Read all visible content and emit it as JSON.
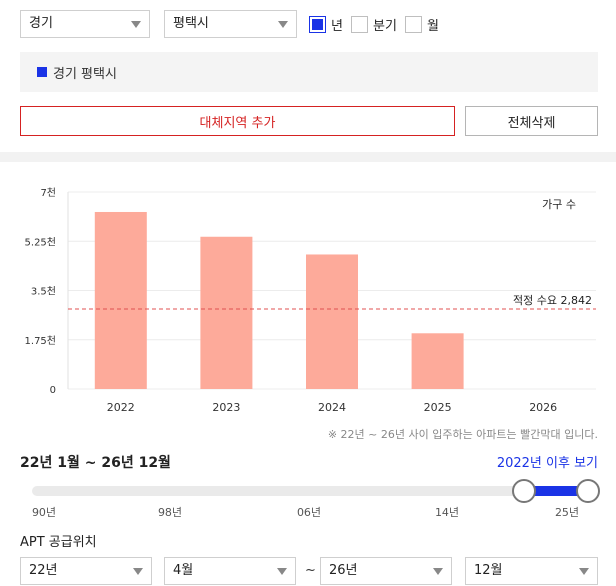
{
  "filters": {
    "province": "경기",
    "city": "평택시",
    "period_options": [
      {
        "label": "년",
        "checked": true
      },
      {
        "label": "분기",
        "checked": false
      },
      {
        "label": "월",
        "checked": false
      }
    ]
  },
  "selected_region": "경기 평택시",
  "buttons": {
    "add_region": "대체지역 추가",
    "clear_all": "전체삭제"
  },
  "chart_data": {
    "type": "bar",
    "series_label": "가구 수",
    "categories": [
      "2022",
      "2023",
      "2024",
      "2025",
      "2026"
    ],
    "values": [
      6290,
      5410,
      4780,
      1980,
      0
    ],
    "ylim": [
      0,
      7000
    ],
    "yticks": [
      {
        "value": 0,
        "label": "0"
      },
      {
        "value": 1750,
        "label": "1.75천"
      },
      {
        "value": 3500,
        "label": "3.5천"
      },
      {
        "value": 5250,
        "label": "5.25천"
      },
      {
        "value": 7000,
        "label": "7천"
      }
    ],
    "reference_line": {
      "value": 2842,
      "label": "적정 수요 2,842"
    },
    "bar_color": "#fdaa9a",
    "reference_color": "#e05050"
  },
  "note": "※ 22년 ~ 26년 사이 입주하는 아파트는 빨간막대 입니다.",
  "range": {
    "label": "22년 1월 ~ 26년 12월",
    "link": "2022년 이후 보기",
    "start_fraction": 0.884,
    "end_fraction": 1.0,
    "ticks": [
      "90년",
      "98년",
      "06년",
      "14년",
      "25년"
    ]
  },
  "apt": {
    "title": "APT 공급위치",
    "start_year": "22년",
    "start_month": "4월",
    "tilde": "~",
    "end_year": "26년",
    "end_month": "12월"
  },
  "colors": {
    "accent": "#1a33e6",
    "danger": "#d52222"
  }
}
